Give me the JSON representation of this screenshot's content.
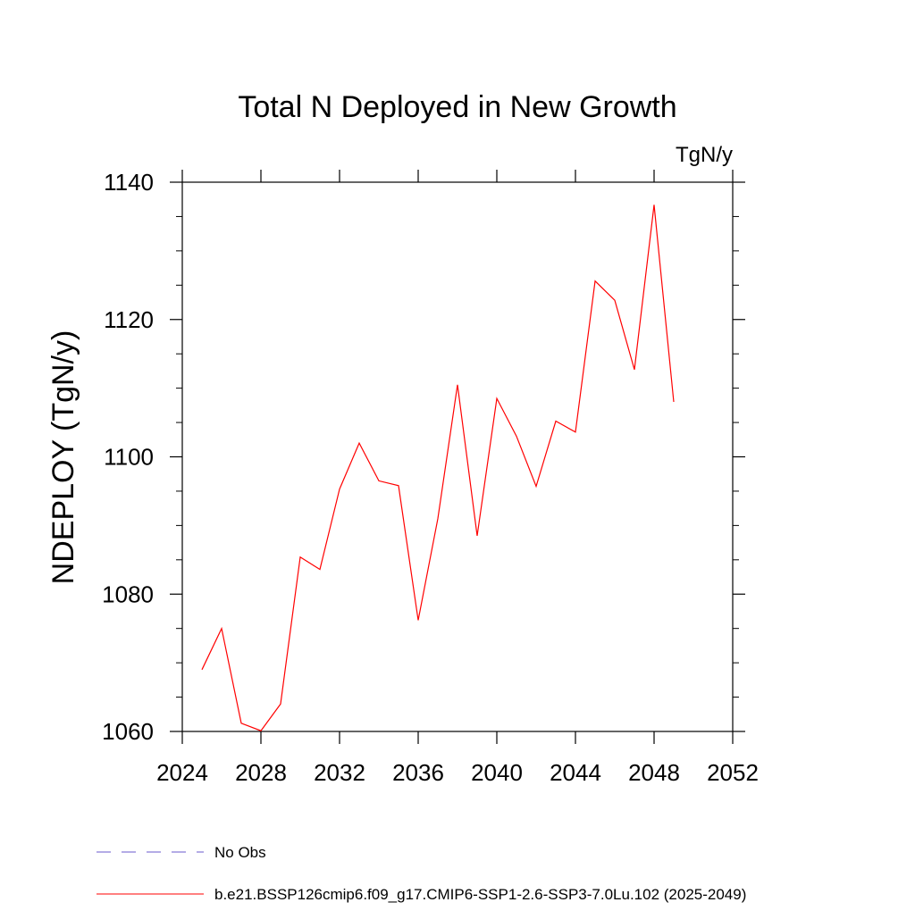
{
  "chart_data": {
    "type": "line",
    "title": "Total N Deployed in New Growth",
    "units": "TgN/y",
    "ylabel": "NDEPLOY  (TgN/y)",
    "xlabel": "",
    "xlim": [
      2024,
      2052
    ],
    "ylim": [
      1060,
      1140
    ],
    "x_ticks": [
      2024,
      2028,
      2032,
      2036,
      2040,
      2044,
      2048,
      2052
    ],
    "x_tick_labels": [
      "2024",
      "2028",
      "2032",
      "2036",
      "2040",
      "2044",
      "2048",
      "2052"
    ],
    "y_ticks": [
      1060,
      1080,
      1100,
      1120,
      1140
    ],
    "y_tick_labels": [
      "1060",
      "1080",
      "1100",
      "1120",
      "1140"
    ],
    "grid": false,
    "legend_position": "bottom",
    "series": [
      {
        "name": "b.e21.BSSP126cmip6.f09_g17.CMIP6-SSP1-2.6-SSP3-7.0Lu.102 (2025-2049)",
        "color": "#ff0000",
        "style": "solid",
        "x": [
          2025,
          2026,
          2027,
          2028,
          2029,
          2030,
          2031,
          2032,
          2033,
          2034,
          2035,
          2036,
          2037,
          2038,
          2039,
          2040,
          2041,
          2042,
          2043,
          2044,
          2045,
          2046,
          2047,
          2048,
          2049
        ],
        "y": [
          1069.0,
          1075.0,
          1061.2,
          1060.1,
          1064.0,
          1085.4,
          1083.6,
          1095.3,
          1102.0,
          1096.5,
          1095.8,
          1076.2,
          1091.0,
          1110.5,
          1088.5,
          1108.5,
          1103.0,
          1095.7,
          1105.2,
          1103.6,
          1125.6,
          1122.8,
          1112.7,
          1136.7,
          1108.0
        ]
      }
    ],
    "legend": [
      {
        "label": "No Obs",
        "color": "#6a5acd",
        "style": "dashed"
      },
      {
        "label": "b.e21.BSSP126cmip6.f09_g17.CMIP6-SSP1-2.6-SSP3-7.0Lu.102 (2025-2049)",
        "color": "#ff0000",
        "style": "solid"
      }
    ]
  }
}
